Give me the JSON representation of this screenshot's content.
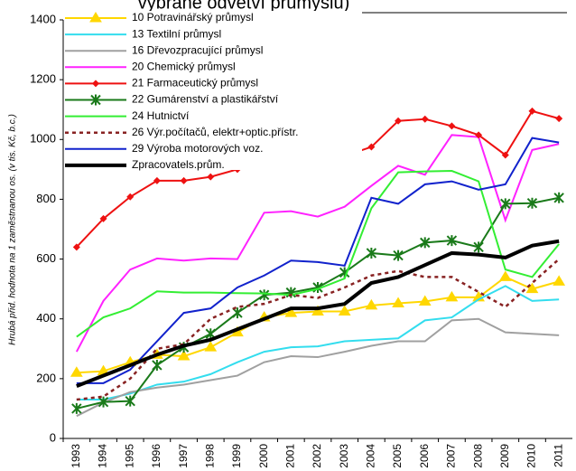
{
  "chart_data": {
    "type": "line",
    "title": "vybrané odvětví průmyslu)",
    "y_label": "Hrubá přid. hodnota na 1 zaměstnanou os. (v tis. Kč, b.c.)",
    "categories": [
      "1993",
      "1994",
      "1995",
      "1996",
      "1997",
      "1998",
      "1999",
      "2000",
      "2001",
      "2002",
      "2003",
      "2004",
      "2005",
      "2006",
      "2007",
      "2008",
      "2009",
      "2010",
      "2011"
    ],
    "ylim": [
      0,
      1400
    ],
    "yticks": [
      0,
      200,
      400,
      600,
      800,
      1000,
      1200,
      1400
    ],
    "grid": false,
    "legend": "top-left",
    "series": [
      {
        "name": "10  Potravinářský průmysl",
        "color": "#ffd700",
        "marker": "triangle",
        "width": 2,
        "dash": false,
        "values": [
          220,
          225,
          255,
          280,
          275,
          305,
          355,
          405,
          420,
          425,
          425,
          445,
          452,
          458,
          472,
          472,
          540,
          500,
          525
        ]
      },
      {
        "name": "13 Textilní průmysl",
        "color": "#33ddee",
        "marker": "none",
        "width": 2,
        "dash": false,
        "values": [
          130,
          130,
          150,
          180,
          190,
          215,
          255,
          290,
          305,
          308,
          325,
          330,
          335,
          395,
          405,
          465,
          510,
          460,
          465
        ]
      },
      {
        "name": "16 Dřevozpracující průmysl",
        "color": "#a0a0a0",
        "marker": "none",
        "width": 2,
        "dash": false,
        "values": [
          75,
          120,
          155,
          170,
          180,
          195,
          210,
          255,
          275,
          272,
          290,
          310,
          325,
          325,
          395,
          400,
          355,
          350,
          345
        ]
      },
      {
        "name": "20 Chemický průmysl",
        "color": "#ff22ff",
        "marker": "none",
        "width": 2,
        "dash": false,
        "values": [
          290,
          460,
          565,
          602,
          595,
          602,
          600,
          755,
          760,
          742,
          775,
          845,
          912,
          882,
          1015,
          1008,
          730,
          965,
          985
        ]
      },
      {
        "name": "21 Farmaceutický průmysl",
        "color": "#ee1111",
        "marker": "diamond",
        "width": 2,
        "dash": false,
        "values": [
          640,
          735,
          808,
          862,
          862,
          875,
          900,
          950,
          948,
          935,
          945,
          975,
          1062,
          1068,
          1045,
          1015,
          948,
          1095,
          1070
        ]
      },
      {
        "name": "22 Gumárenství a plastikářství",
        "color": "#1a7a1a",
        "marker": "star",
        "width": 2,
        "dash": false,
        "values": [
          100,
          122,
          125,
          245,
          305,
          350,
          420,
          480,
          488,
          505,
          555,
          620,
          612,
          655,
          662,
          640,
          785,
          787,
          805
        ]
      },
      {
        "name": "24 Hutnictví",
        "color": "#33ee33",
        "marker": "none",
        "width": 2,
        "dash": false,
        "values": [
          340,
          405,
          435,
          492,
          488,
          488,
          486,
          485,
          480,
          500,
          535,
          770,
          890,
          893,
          895,
          860,
          565,
          540,
          650
        ]
      },
      {
        "name": "26 Výr.počítačů, elektr+optic.přístr.",
        "color": "#882222",
        "marker": "none",
        "width": 2.5,
        "dash": true,
        "values": [
          130,
          140,
          200,
          300,
          315,
          400,
          440,
          450,
          480,
          470,
          505,
          545,
          560,
          540,
          540,
          490,
          440,
          520,
          600
        ]
      },
      {
        "name": "29 Výroba motorových voz.",
        "color": "#1122cc",
        "marker": "none",
        "width": 2,
        "dash": false,
        "values": [
          185,
          185,
          230,
          325,
          420,
          435,
          505,
          545,
          595,
          590,
          578,
          805,
          785,
          850,
          860,
          832,
          850,
          1005,
          990
        ]
      },
      {
        "name": "Zpracovatels.prům.",
        "color": "#000000",
        "marker": "none",
        "width": 4,
        "dash": false,
        "values": [
          175,
          210,
          245,
          280,
          310,
          330,
          365,
          400,
          435,
          435,
          450,
          520,
          540,
          580,
          620,
          615,
          605,
          645,
          660
        ]
      }
    ]
  }
}
